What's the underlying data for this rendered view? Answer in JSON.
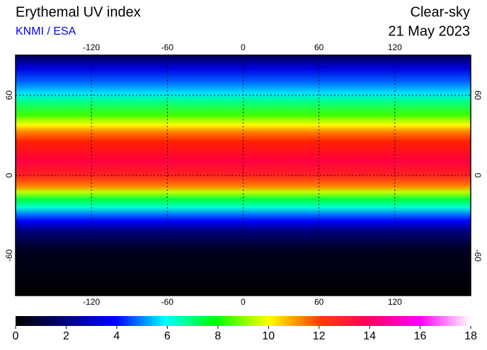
{
  "header": {
    "title": "Erythemal UV index",
    "source": "KNMI / ESA",
    "condition": "Clear-sky",
    "date": "21 May 2023"
  },
  "map": {
    "xlim": [
      -180,
      180
    ],
    "ylim": [
      -90,
      90
    ],
    "xticks": [
      -120,
      -60,
      0,
      60,
      120
    ],
    "yticks": [
      60,
      0,
      -60
    ]
  },
  "colorbar": {
    "lim": [
      0,
      18
    ],
    "ticks": [
      0,
      2,
      4,
      6,
      8,
      10,
      12,
      14,
      16,
      18
    ]
  }
}
